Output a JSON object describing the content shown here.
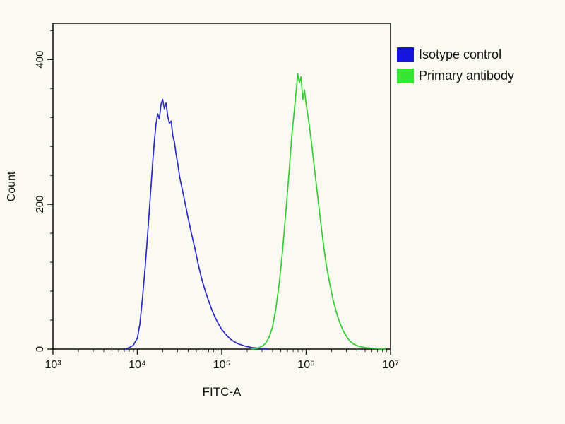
{
  "figure": {
    "background": "#fafaf2",
    "frame_color": "#1a1a1a",
    "text_color": "#111111"
  },
  "chart_data": {
    "type": "line",
    "subtype": "flow-cytometry-histogram",
    "title": "",
    "xlabel": "FITC-A",
    "ylabel": "Count",
    "x_scale": "log10",
    "xlim_log10": [
      3,
      7
    ],
    "ylim": [
      0,
      450
    ],
    "x_tick_labels": [
      "10³",
      "10⁴",
      "10⁵",
      "10⁶",
      "10⁷"
    ],
    "x_tick_log10": [
      3,
      4,
      5,
      6,
      7
    ],
    "y_ticks": [
      0,
      200,
      400
    ],
    "y_minor_step": 40,
    "grid": false,
    "legend_position": "top-right-outside",
    "series": [
      {
        "name": "Isotype control",
        "color": "#2b2bc4",
        "swatch": "#1515dd",
        "points": [
          [
            3.85,
            0
          ],
          [
            3.9,
            2
          ],
          [
            3.95,
            5
          ],
          [
            4.0,
            15
          ],
          [
            4.03,
            35
          ],
          [
            4.06,
            70
          ],
          [
            4.09,
            110
          ],
          [
            4.12,
            155
          ],
          [
            4.15,
            205
          ],
          [
            4.18,
            255
          ],
          [
            4.2,
            285
          ],
          [
            4.22,
            310
          ],
          [
            4.24,
            325
          ],
          [
            4.26,
            318
          ],
          [
            4.28,
            338
          ],
          [
            4.3,
            345
          ],
          [
            4.32,
            332
          ],
          [
            4.34,
            340
          ],
          [
            4.36,
            322
          ],
          [
            4.38,
            312
          ],
          [
            4.4,
            315
          ],
          [
            4.42,
            295
          ],
          [
            4.44,
            285
          ],
          [
            4.46,
            268
          ],
          [
            4.48,
            255
          ],
          [
            4.5,
            238
          ],
          [
            4.53,
            222
          ],
          [
            4.56,
            205
          ],
          [
            4.6,
            182
          ],
          [
            4.64,
            160
          ],
          [
            4.68,
            140
          ],
          [
            4.72,
            118
          ],
          [
            4.76,
            98
          ],
          [
            4.8,
            82
          ],
          [
            4.84,
            68
          ],
          [
            4.88,
            55
          ],
          [
            4.92,
            44
          ],
          [
            4.96,
            35
          ],
          [
            5.0,
            27
          ],
          [
            5.05,
            20
          ],
          [
            5.1,
            14
          ],
          [
            5.15,
            10
          ],
          [
            5.2,
            7
          ],
          [
            5.28,
            4
          ],
          [
            5.36,
            2
          ],
          [
            5.45,
            1
          ],
          [
            5.55,
            0
          ]
        ]
      },
      {
        "name": "Primary antibody",
        "color": "#33cc33",
        "swatch": "#35e635",
        "points": [
          [
            5.35,
            0
          ],
          [
            5.42,
            1
          ],
          [
            5.48,
            4
          ],
          [
            5.52,
            8
          ],
          [
            5.56,
            16
          ],
          [
            5.6,
            30
          ],
          [
            5.64,
            55
          ],
          [
            5.68,
            90
          ],
          [
            5.72,
            135
          ],
          [
            5.76,
            190
          ],
          [
            5.8,
            248
          ],
          [
            5.83,
            295
          ],
          [
            5.86,
            330
          ],
          [
            5.88,
            355
          ],
          [
            5.9,
            380
          ],
          [
            5.92,
            368
          ],
          [
            5.94,
            376
          ],
          [
            5.96,
            345
          ],
          [
            5.98,
            358
          ],
          [
            6.0,
            338
          ],
          [
            6.03,
            315
          ],
          [
            6.06,
            288
          ],
          [
            6.09,
            258
          ],
          [
            6.12,
            228
          ],
          [
            6.15,
            198
          ],
          [
            6.18,
            168
          ],
          [
            6.21,
            140
          ],
          [
            6.24,
            115
          ],
          [
            6.28,
            90
          ],
          [
            6.32,
            68
          ],
          [
            6.36,
            50
          ],
          [
            6.4,
            36
          ],
          [
            6.44,
            25
          ],
          [
            6.48,
            17
          ],
          [
            6.52,
            11
          ],
          [
            6.56,
            7
          ],
          [
            6.62,
            4
          ],
          [
            6.7,
            2
          ],
          [
            6.8,
            1
          ],
          [
            6.95,
            0
          ]
        ]
      }
    ]
  }
}
